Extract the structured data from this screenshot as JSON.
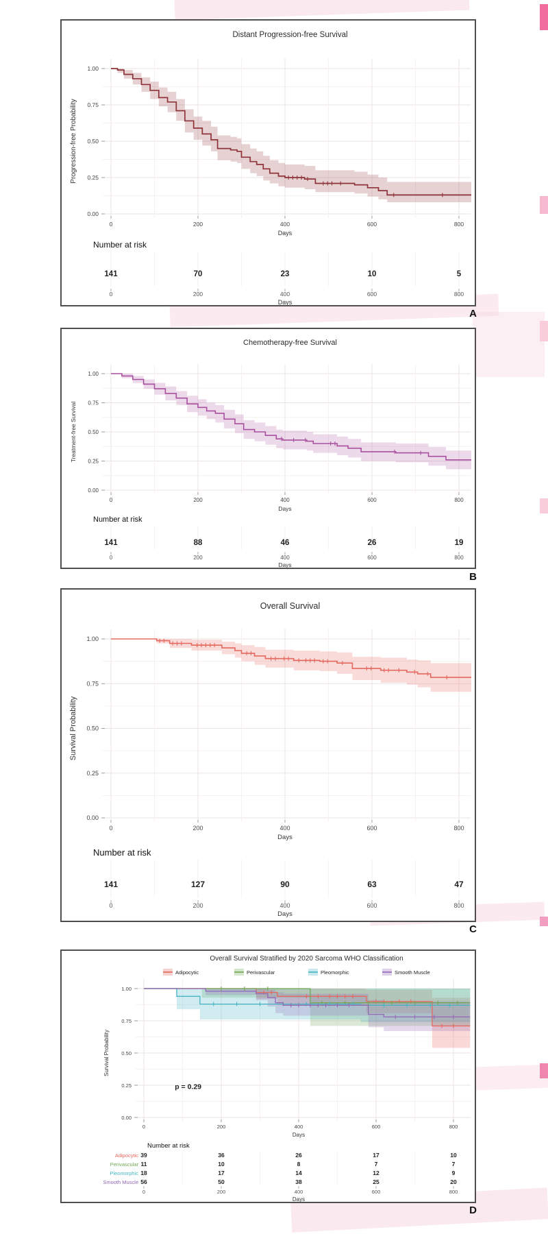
{
  "figure": {
    "background": "#ffffff",
    "panel_border_color": "#4f4f4f",
    "watermark_pink": "#f8d7e4",
    "panels": [
      "A",
      "B",
      "C",
      "D"
    ]
  },
  "chart_data": [
    {
      "panel_label": "A",
      "type": "line",
      "subtype": "kaplan_meier_step",
      "title": "Distant Progression-free Survival",
      "xlabel": "Days",
      "ylabel": "Progression-free Probability",
      "xlim": [
        0,
        843
      ],
      "ylim": [
        0,
        1
      ],
      "x_ticks": [
        0,
        200,
        400,
        600,
        800
      ],
      "y_ticks": [
        0,
        0.25,
        0.5,
        0.75,
        1
      ],
      "y_tick_labels": [
        "0.00",
        "0.25",
        "0.50",
        "0.75",
        "1.00"
      ],
      "grid": true,
      "legend": null,
      "annotation": null,
      "number_at_risk_label": "Number at risk",
      "series": [
        {
          "name": "",
          "color": "#8e3338",
          "band_opacity": 0.22,
          "steps": [
            [
              0,
              1.0,
              1.0,
              1.0
            ],
            [
              15,
              0.99,
              0.97,
              1.0
            ],
            [
              30,
              0.96,
              0.93,
              0.99
            ],
            [
              50,
              0.93,
              0.89,
              0.97
            ],
            [
              70,
              0.89,
              0.84,
              0.94
            ],
            [
              90,
              0.85,
              0.79,
              0.91
            ],
            [
              110,
              0.8,
              0.74,
              0.87
            ],
            [
              130,
              0.77,
              0.7,
              0.84
            ],
            [
              150,
              0.71,
              0.64,
              0.79
            ],
            [
              170,
              0.64,
              0.56,
              0.72
            ],
            [
              190,
              0.59,
              0.51,
              0.67
            ],
            [
              210,
              0.55,
              0.47,
              0.64
            ],
            [
              230,
              0.51,
              0.43,
              0.6
            ],
            [
              245,
              0.45,
              0.37,
              0.54
            ],
            [
              275,
              0.44,
              0.36,
              0.53
            ],
            [
              290,
              0.43,
              0.35,
              0.52
            ],
            [
              300,
              0.39,
              0.31,
              0.48
            ],
            [
              320,
              0.36,
              0.28,
              0.45
            ],
            [
              335,
              0.34,
              0.26,
              0.43
            ],
            [
              350,
              0.31,
              0.23,
              0.4
            ],
            [
              365,
              0.28,
              0.21,
              0.37
            ],
            [
              385,
              0.26,
              0.19,
              0.35
            ],
            [
              400,
              0.25,
              0.18,
              0.34
            ],
            [
              445,
              0.24,
              0.17,
              0.33
            ],
            [
              470,
              0.21,
              0.15,
              0.3
            ],
            [
              560,
              0.2,
              0.14,
              0.29
            ],
            [
              590,
              0.18,
              0.12,
              0.27
            ],
            [
              615,
              0.16,
              0.1,
              0.25
            ],
            [
              635,
              0.13,
              0.08,
              0.22
            ],
            [
              843,
              0.13,
              0.08,
              0.22
            ]
          ],
          "censor_times": [
            408,
            418,
            428,
            438,
            452,
            488,
            498,
            508,
            528,
            650,
            762
          ],
          "at_risk": [
            141,
            70,
            23,
            10,
            5
          ]
        }
      ]
    },
    {
      "panel_label": "B",
      "type": "line",
      "subtype": "kaplan_meier_step",
      "title": "Chemotherapy-free Survival",
      "xlabel": "Days",
      "ylabel": "Treatment-free Survival",
      "xlim": [
        0,
        843
      ],
      "ylim": [
        0,
        1
      ],
      "x_ticks": [
        0,
        200,
        400,
        600,
        800
      ],
      "y_ticks": [
        0,
        0.25,
        0.5,
        0.75,
        1
      ],
      "y_tick_labels": [
        "0.00",
        "0.25",
        "0.50",
        "0.75",
        "1.00"
      ],
      "grid": true,
      "legend": null,
      "annotation": null,
      "number_at_risk_label": "Number at risk",
      "series": [
        {
          "name": "",
          "color": "#a8509f",
          "band_opacity": 0.22,
          "steps": [
            [
              0,
              1.0,
              1.0,
              1.0
            ],
            [
              25,
              0.98,
              0.96,
              1.0
            ],
            [
              50,
              0.95,
              0.92,
              0.98
            ],
            [
              75,
              0.91,
              0.87,
              0.95
            ],
            [
              100,
              0.87,
              0.82,
              0.92
            ],
            [
              125,
              0.83,
              0.77,
              0.89
            ],
            [
              150,
              0.79,
              0.73,
              0.85
            ],
            [
              175,
              0.74,
              0.67,
              0.81
            ],
            [
              200,
              0.71,
              0.64,
              0.78
            ],
            [
              220,
              0.68,
              0.61,
              0.75
            ],
            [
              240,
              0.66,
              0.58,
              0.73
            ],
            [
              260,
              0.61,
              0.53,
              0.69
            ],
            [
              285,
              0.57,
              0.49,
              0.65
            ],
            [
              305,
              0.52,
              0.44,
              0.6
            ],
            [
              330,
              0.5,
              0.42,
              0.58
            ],
            [
              355,
              0.47,
              0.39,
              0.55
            ],
            [
              380,
              0.44,
              0.36,
              0.52
            ],
            [
              395,
              0.43,
              0.35,
              0.51
            ],
            [
              450,
              0.42,
              0.34,
              0.5
            ],
            [
              465,
              0.4,
              0.32,
              0.48
            ],
            [
              520,
              0.38,
              0.3,
              0.46
            ],
            [
              545,
              0.36,
              0.28,
              0.44
            ],
            [
              575,
              0.33,
              0.25,
              0.41
            ],
            [
              655,
              0.32,
              0.24,
              0.4
            ],
            [
              730,
              0.29,
              0.21,
              0.37
            ],
            [
              770,
              0.26,
              0.18,
              0.34
            ],
            [
              843,
              0.26,
              0.18,
              0.34
            ]
          ],
          "censor_times": [
            392,
            420,
            447,
            505,
            515,
            652,
            712
          ],
          "at_risk": [
            141,
            88,
            46,
            26,
            19
          ]
        }
      ]
    },
    {
      "panel_label": "C",
      "type": "line",
      "subtype": "kaplan_meier_step",
      "title": "Overall Survival",
      "xlabel": "Days",
      "ylabel": "Survival Probability",
      "xlim": [
        0,
        843
      ],
      "ylim": [
        0,
        1
      ],
      "x_ticks": [
        0,
        200,
        400,
        600,
        800
      ],
      "y_ticks": [
        0,
        0.25,
        0.5,
        0.75,
        1
      ],
      "y_tick_labels": [
        "0.00",
        "0.25",
        "0.50",
        "0.75",
        "1.00"
      ],
      "grid": true,
      "legend": null,
      "annotation": null,
      "number_at_risk_label": "Number at risk",
      "series": [
        {
          "name": "",
          "color": "#e4685f",
          "band_opacity": 0.24,
          "steps": [
            [
              0,
              1.0,
              1.0,
              1.0
            ],
            [
              105,
              0.99,
              0.975,
              1.0
            ],
            [
              135,
              0.975,
              0.95,
              1.0
            ],
            [
              185,
              0.965,
              0.935,
              0.995
            ],
            [
              255,
              0.95,
              0.915,
              0.985
            ],
            [
              285,
              0.935,
              0.895,
              0.975
            ],
            [
              300,
              0.92,
              0.875,
              0.965
            ],
            [
              330,
              0.905,
              0.855,
              0.955
            ],
            [
              355,
              0.89,
              0.84,
              0.94
            ],
            [
              420,
              0.88,
              0.825,
              0.935
            ],
            [
              480,
              0.875,
              0.82,
              0.93
            ],
            [
              520,
              0.865,
              0.805,
              0.925
            ],
            [
              555,
              0.835,
              0.77,
              0.9
            ],
            [
              620,
              0.825,
              0.755,
              0.895
            ],
            [
              680,
              0.815,
              0.745,
              0.885
            ],
            [
              705,
              0.805,
              0.73,
              0.88
            ],
            [
              735,
              0.785,
              0.705,
              0.865
            ],
            [
              843,
              0.785,
              0.705,
              0.865
            ]
          ],
          "censor_times": [
            112,
            122,
            142,
            152,
            162,
            198,
            208,
            218,
            228,
            238,
            312,
            322,
            368,
            378,
            398,
            408,
            432,
            448,
            458,
            468,
            488,
            498,
            532,
            588,
            598,
            628,
            638,
            662,
            698,
            728,
            772
          ],
          "at_risk": [
            141,
            127,
            90,
            63,
            47
          ]
        }
      ]
    },
    {
      "panel_label": "D",
      "type": "line",
      "subtype": "kaplan_meier_step",
      "title": "Overall Survival Stratified by 2020 Sarcoma WHO Classification",
      "xlabel": "Days",
      "ylabel": "Survival Probability",
      "xlim": [
        0,
        843
      ],
      "ylim": [
        0,
        1
      ],
      "x_ticks": [
        0,
        200,
        400,
        600,
        800
      ],
      "y_ticks": [
        0,
        0.25,
        0.5,
        0.75,
        1
      ],
      "y_tick_labels": [
        "0.00",
        "0.25",
        "0.50",
        "0.75",
        "1.00"
      ],
      "grid": true,
      "legend": {
        "position": "top",
        "entries": [
          {
            "label": "Adipocytic",
            "color": "#e4685f"
          },
          {
            "label": "Perivascular",
            "color": "#70a855"
          },
          {
            "label": "Pleomorphic",
            "color": "#45b5c4"
          },
          {
            "label": "Smooth Muscle",
            "color": "#9368b5"
          }
        ]
      },
      "annotation": {
        "text": "p = 0.29",
        "x": 80,
        "y": 0.22
      },
      "number_at_risk_label": "Number at risk",
      "series": [
        {
          "name": "Adipocytic",
          "color": "#e4685f",
          "band_opacity": 0.25,
          "steps": [
            [
              0,
              1.0,
              1.0,
              1.0
            ],
            [
              290,
              0.97,
              0.92,
              1.0
            ],
            [
              345,
              0.94,
              0.87,
              1.0
            ],
            [
              555,
              0.94,
              0.87,
              1.0
            ],
            [
              575,
              0.9,
              0.81,
              0.99
            ],
            [
              730,
              0.9,
              0.81,
              0.99
            ],
            [
              745,
              0.71,
              0.54,
              0.93
            ],
            [
              843,
              0.71,
              0.54,
              0.93
            ]
          ],
          "censor_times": [
            310,
            330,
            420,
            450,
            480,
            500,
            520,
            540,
            600,
            620,
            660,
            690,
            770,
            800
          ],
          "at_risk": [
            39,
            36,
            26,
            17,
            10
          ]
        },
        {
          "name": "Perivascular",
          "color": "#70a855",
          "band_opacity": 0.25,
          "steps": [
            [
              0,
              1.0,
              1.0,
              1.0
            ],
            [
              150,
              1.0,
              0.93,
              1.0
            ],
            [
              430,
              0.89,
              0.71,
              1.0
            ],
            [
              843,
              0.89,
              0.71,
              1.0
            ]
          ],
          "censor_times": [
            200,
            260,
            320,
            460,
            520,
            580,
            640,
            700,
            760,
            810
          ],
          "at_risk": [
            11,
            10,
            8,
            7,
            7
          ]
        },
        {
          "name": "Pleomorphic",
          "color": "#45b5c4",
          "band_opacity": 0.25,
          "steps": [
            [
              0,
              1.0,
              1.0,
              1.0
            ],
            [
              85,
              0.94,
              0.84,
              1.0
            ],
            [
              145,
              0.88,
              0.76,
              1.0
            ],
            [
              560,
              0.87,
              0.74,
              1.0
            ],
            [
              843,
              0.87,
              0.74,
              1.0
            ]
          ],
          "censor_times": [
            180,
            240,
            300,
            360,
            420,
            480,
            540,
            620,
            680,
            740,
            790
          ],
          "at_risk": [
            18,
            17,
            14,
            12,
            9
          ]
        },
        {
          "name": "Smooth Muscle",
          "color": "#9368b5",
          "band_opacity": 0.25,
          "steps": [
            [
              0,
              1.0,
              1.0,
              1.0
            ],
            [
              160,
              0.98,
              0.95,
              1.0
            ],
            [
              290,
              0.96,
              0.91,
              1.0
            ],
            [
              320,
              0.93,
              0.86,
              0.99
            ],
            [
              340,
              0.89,
              0.81,
              0.97
            ],
            [
              360,
              0.87,
              0.79,
              0.96
            ],
            [
              560,
              0.87,
              0.79,
              0.96
            ],
            [
              580,
              0.8,
              0.7,
              0.91
            ],
            [
              620,
              0.78,
              0.67,
              0.9
            ],
            [
              843,
              0.78,
              0.67,
              0.9
            ]
          ],
          "censor_times": [
            380,
            400,
            430,
            450,
            470,
            500,
            530,
            650,
            700,
            750,
            800
          ],
          "at_risk": [
            56,
            50,
            38,
            25,
            20
          ]
        }
      ]
    }
  ]
}
